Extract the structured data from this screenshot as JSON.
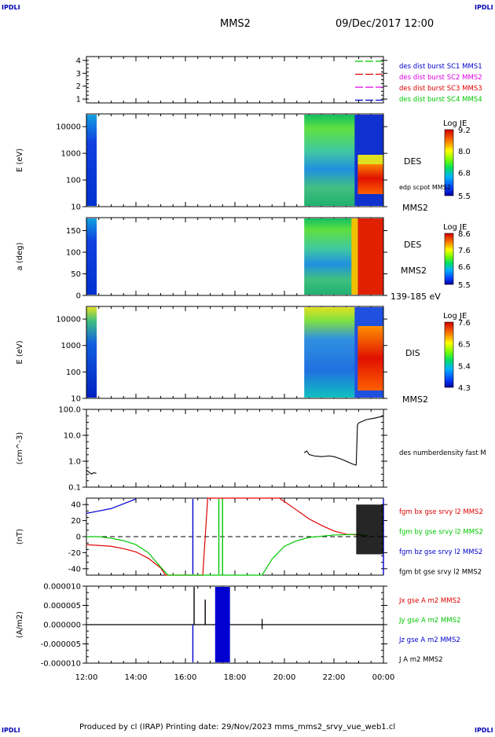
{
  "header": {
    "logo_left": "IPDLI",
    "logo_right": "IPDLI",
    "spacecraft": "MMS2",
    "datetime": "09/Dec/2017 12:00"
  },
  "footer": {
    "text": "Produced by cl (IRAP)   Printing date: 29/Nov/2023   mms_mms2_srvy_vue_web1.cl",
    "logo_left": "IPDLI",
    "logo_right": "IPDLI"
  },
  "colors": {
    "red": "#e00000",
    "green": "#00c800",
    "blue": "#0000d0",
    "magenta": "#e000e0",
    "black": "#000000"
  },
  "chart_data": [
    {
      "type": "line",
      "id": "burst-availability",
      "title": "",
      "ylabel": "",
      "yticks": [
        "1",
        "2",
        "3",
        "4"
      ],
      "ylim": [
        0.7,
        4.3
      ],
      "series": [
        {
          "name": "des dist burst SC1 MMS1",
          "color": "#0000d0"
        },
        {
          "name": "des dist burst SC2 MMS2",
          "color": "#e000e0"
        },
        {
          "name": "des dist burst SC3 MMS3",
          "color": "#e00000"
        },
        {
          "name": "des dist burst SC4 MMS4",
          "color": "#00c800"
        }
      ]
    },
    {
      "type": "heatmap",
      "id": "des-energy",
      "ylabel": "E (eV)",
      "yscale": "log",
      "yticks": [
        "10",
        "100",
        "1000",
        "10000"
      ],
      "ylim": [
        10,
        30000
      ],
      "colorbar": {
        "title": "Log JE",
        "ticks": [
          "5.5",
          "6.8",
          "8.0",
          "9.2"
        ],
        "range": [
          5.5,
          9.2
        ]
      },
      "labels": [
        "DES",
        "edp scpot MMS2",
        "MMS2"
      ],
      "data_hours": [
        [
          12.0,
          12.4
        ],
        [
          20.8,
          24.0
        ]
      ]
    },
    {
      "type": "heatmap",
      "id": "des-pitch-angle",
      "ylabel": "a (deg)",
      "yticks": [
        "0",
        "50",
        "100",
        "150"
      ],
      "ylim": [
        0,
        180
      ],
      "colorbar": {
        "title": "Log JE",
        "ticks": [
          "5.5",
          "6.6",
          "7.6",
          "8.6"
        ],
        "range": [
          5.5,
          8.6
        ]
      },
      "labels": [
        "DES",
        "MMS2",
        "139-185 eV"
      ],
      "data_hours": [
        [
          12.0,
          12.4
        ],
        [
          20.8,
          24.0
        ]
      ]
    },
    {
      "type": "heatmap",
      "id": "dis-energy",
      "ylabel": "E (eV)",
      "yscale": "log",
      "yticks": [
        "10",
        "100",
        "1000",
        "10000"
      ],
      "ylim": [
        10,
        30000
      ],
      "colorbar": {
        "title": "Log JE",
        "ticks": [
          "4.3",
          "5.4",
          "6.5",
          "7.6"
        ],
        "range": [
          4.3,
          7.6
        ]
      },
      "labels": [
        "DIS",
        "MMS2"
      ],
      "data_hours": [
        [
          12.0,
          12.4
        ],
        [
          20.8,
          24.0
        ]
      ]
    },
    {
      "type": "line",
      "id": "number-density",
      "ylabel": "(cm^-3)",
      "yscale": "log",
      "yticks": [
        "0.1",
        "1.0",
        "10.0",
        "100.0"
      ],
      "ylim": [
        0.1,
        100
      ],
      "series": [
        {
          "name": "des numberdensity fast M",
          "color": "#000000",
          "x": [
            12.0,
            12.1,
            12.2,
            12.3,
            12.4
          ],
          "y": [
            0.45,
            0.38,
            0.32,
            0.36,
            0.34
          ],
          "x2": [
            20.8,
            20.9,
            21.0,
            21.2,
            21.5,
            21.8,
            22.0,
            22.2,
            22.4,
            22.6,
            22.8,
            22.9
          ],
          "y2": [
            2.1,
            2.5,
            1.8,
            1.6,
            1.5,
            1.6,
            1.5,
            1.3,
            1.1,
            0.9,
            0.75,
            0.7
          ]
        }
      ]
    },
    {
      "type": "line",
      "id": "magnetic-field",
      "ylabel": "(nT)",
      "yticks": [
        "-40",
        "-20",
        "0",
        "20",
        "40"
      ],
      "ylim": [
        -48,
        48
      ],
      "series": [
        {
          "name": "fgm bx gse srvy l2 MMS2",
          "color": "#e00000",
          "x": [
            12.0,
            12.5,
            13.0,
            13.5,
            14.0,
            14.5,
            15.0,
            15.2,
            16.7,
            16.9,
            19.8,
            20.5,
            21.0,
            21.5,
            22.0,
            22.5,
            23.0,
            23.4
          ],
          "y": [
            -10,
            -11,
            -12,
            -15,
            -19,
            -27,
            -39,
            -48,
            -48,
            48,
            48,
            33,
            22,
            14,
            7,
            3,
            2,
            1
          ]
        },
        {
          "name": "fgm by gse srvy l2 MMS2",
          "color": "#00c800",
          "x": [
            12.0,
            12.5,
            13.0,
            13.5,
            14.0,
            14.5,
            15.0,
            15.3,
            19.1,
            19.5,
            20.0,
            20.5,
            21.0,
            22.0,
            23.0,
            23.4
          ],
          "y": [
            0,
            0,
            -2,
            -5,
            -10,
            -20,
            -38,
            -48,
            -48,
            -28,
            -12,
            -5,
            -1,
            2,
            3,
            1
          ]
        },
        {
          "name": "fgm bz gse srvy l2 MMS2",
          "color": "#0000d0",
          "x": [
            12.0,
            12.5,
            13.0,
            13.5,
            14.0
          ],
          "y": [
            29,
            32,
            35,
            41,
            47
          ]
        },
        {
          "name": "fgm bt gse srvy l2 MMS2",
          "color": "#000000"
        }
      ]
    },
    {
      "type": "line",
      "id": "current-density",
      "ylabel": "(A/m2)",
      "yticks": [
        "-0.000010",
        "-0.000005",
        "0.000000",
        "0.000005",
        "0.000010"
      ],
      "ylim": [
        -1e-05,
        1e-05
      ],
      "series": [
        {
          "name": "Jx gse A m2 MMS2",
          "color": "#e00000"
        },
        {
          "name": "Jy gse A m2 MMS2",
          "color": "#00c800"
        },
        {
          "name": "Jz gse A m2 MMS2",
          "color": "#0000d0"
        },
        {
          "name": "J A m2 MMS2",
          "color": "#000000"
        }
      ]
    }
  ],
  "time_axis": {
    "ticks": [
      "12:00",
      "14:00",
      "16:00",
      "18:00",
      "20:00",
      "22:00",
      "00:00"
    ],
    "range_hours": [
      12,
      24
    ]
  }
}
